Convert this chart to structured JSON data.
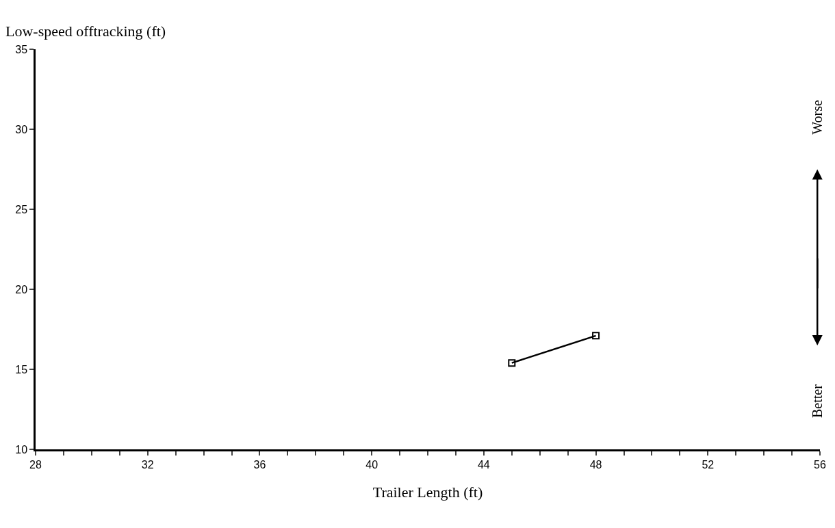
{
  "chart_data": {
    "type": "line",
    "xlabel": "Trailer Length (ft)",
    "ylabel": "Low-speed offtracking (ft)",
    "x": [
      45,
      48
    ],
    "series": [
      {
        "color": "#000000",
        "values": [
          15.4,
          17.1
        ]
      }
    ],
    "xlim": [
      28,
      56
    ],
    "ylim": [
      10,
      35
    ],
    "xticks": [
      28,
      {
        "value": 29,
        "label": null
      },
      {
        "value": 30,
        "label": null
      },
      {
        "value": 31,
        "label": null
      },
      32,
      {
        "value": 33,
        "label": null
      },
      {
        "value": 34,
        "label": null
      },
      {
        "value": 35,
        "label": null
      },
      36,
      {
        "value": 37,
        "label": null
      },
      {
        "value": 38,
        "label": null
      },
      {
        "value": 39,
        "label": null
      },
      40,
      {
        "value": 41,
        "label": null
      },
      {
        "value": 42,
        "label": null
      },
      {
        "value": 43,
        "label": null
      },
      44,
      {
        "value": 45,
        "label": null
      },
      {
        "value": 46,
        "label": null
      },
      {
        "value": 47,
        "label": null
      },
      48,
      {
        "value": 49,
        "label": null
      },
      {
        "value": 50,
        "label": null
      },
      {
        "value": 51,
        "label": null
      },
      52,
      {
        "value": 53,
        "label": null
      },
      {
        "value": 54,
        "label": null
      },
      {
        "value": 55,
        "label": null
      },
      56
    ],
    "yticks": [
      10,
      15,
      20,
      25,
      30,
      35
    ],
    "annotations": [
      "Worse",
      "Better"
    ],
    "marker": "square",
    "line_style": "solid",
    "grid": false,
    "legend": false
  }
}
